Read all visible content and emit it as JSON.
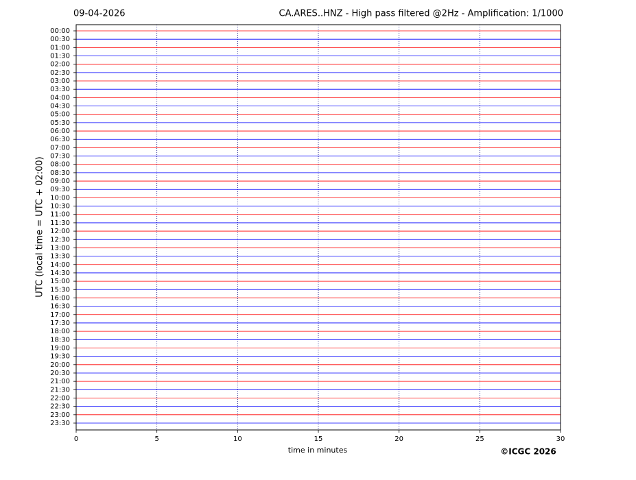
{
  "chart_data": {
    "type": "helicorder",
    "date": "09-04-2026",
    "title": "CA.ARES..HNZ - High pass filtered @2Hz - Amplification: 1/1000",
    "ylabel": "UTC (local time = UTC + 02:00)",
    "xlabel": "time in minutes",
    "copyright": "©ICGC 2026",
    "xlim": [
      0,
      30
    ],
    "xticks": [
      0,
      5,
      10,
      15,
      20,
      25,
      30
    ],
    "grid": true,
    "colors": [
      "#ff0000",
      "#0000ff"
    ],
    "rows": [
      "00:00",
      "00:30",
      "01:00",
      "01:30",
      "02:00",
      "02:30",
      "03:00",
      "03:30",
      "04:00",
      "04:30",
      "05:00",
      "05:30",
      "06:00",
      "06:30",
      "07:00",
      "07:30",
      "08:00",
      "08:30",
      "09:00",
      "09:30",
      "10:00",
      "10:30",
      "11:00",
      "11:30",
      "12:00",
      "12:30",
      "13:00",
      "13:30",
      "14:00",
      "14:30",
      "15:00",
      "15:30",
      "16:00",
      "16:30",
      "17:00",
      "17:30",
      "18:00",
      "18:30",
      "19:00",
      "19:30",
      "20:00",
      "20:30",
      "21:00",
      "21:30",
      "22:00",
      "22:30",
      "23:00",
      "23:30"
    ]
  }
}
